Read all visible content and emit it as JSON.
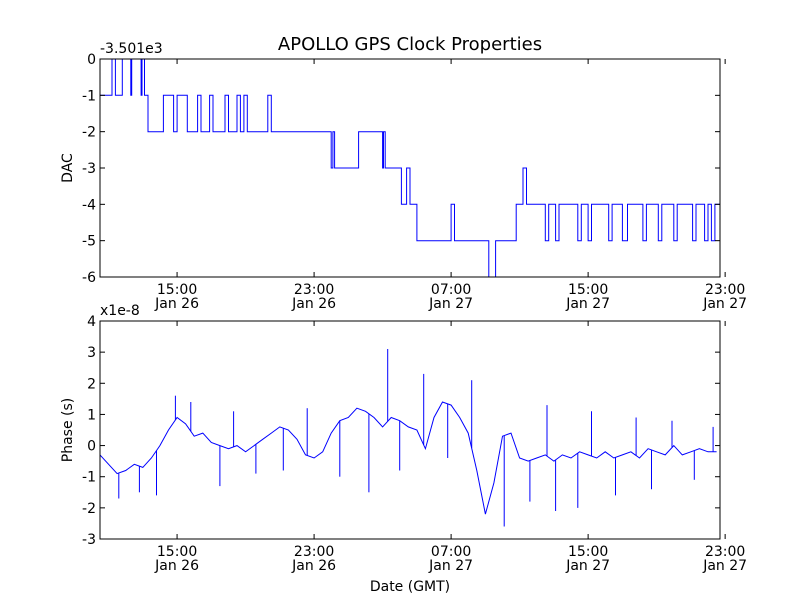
{
  "chart_data": {
    "title": "APOLLO GPS Clock Properties",
    "xlabel": "Date (GMT)",
    "x_ticks": [
      {
        "time": "15:00",
        "date": "Jan 26"
      },
      {
        "time": "23:00",
        "date": "Jan 26"
      },
      {
        "time": "07:00",
        "date": "Jan 27"
      },
      {
        "time": "15:00",
        "date": "Jan 27"
      },
      {
        "time": "23:00",
        "date": "Jan 27"
      }
    ],
    "x_tick_hours": [
      15,
      23,
      31,
      39,
      47
    ],
    "x_range_hours": [
      10.5,
      46.7
    ],
    "panels": [
      {
        "type": "line",
        "ylabel": "DAC",
        "offset_label": "-3.501e3",
        "ylim": [
          -6,
          0
        ],
        "y_ticks": [
          "0",
          "-1",
          "-2",
          "-3",
          "-4",
          "-5",
          "-6"
        ],
        "series": [
          {
            "name": "DAC",
            "color": "#0000ff",
            "x": [
              10.5,
              11.2,
              11.2,
              11.4,
              11.4,
              11.8,
              11.8,
              12.3,
              12.3,
              12.35,
              12.35,
              12.9,
              12.9,
              12.95,
              12.95,
              13.1,
              13.1,
              13.3,
              13.3,
              14.2,
              14.2,
              14.8,
              14.8,
              15.0,
              15.0,
              15.6,
              15.6,
              16.2,
              16.2,
              16.4,
              16.4,
              16.9,
              16.9,
              17.1,
              17.1,
              17.8,
              17.8,
              18.0,
              18.0,
              18.5,
              18.5,
              18.7,
              18.7,
              18.9,
              18.9,
              19.1,
              19.1,
              20.3,
              20.3,
              20.5,
              20.5,
              24.0,
              24.0,
              24.1,
              24.1,
              24.2,
              24.2,
              25.6,
              25.6,
              27.0,
              27.0,
              27.05,
              27.05,
              27.15,
              27.15,
              28.1,
              28.1,
              28.4,
              28.4,
              28.6,
              28.6,
              29.0,
              29.0,
              31.0,
              31.0,
              31.2,
              31.2,
              33.2,
              33.2,
              33.6,
              33.6,
              34.8,
              34.8,
              35.2,
              35.2,
              35.4,
              35.4,
              36.5,
              36.5,
              36.7,
              36.7,
              37.1,
              37.1,
              37.3,
              37.3,
              38.4,
              38.4,
              38.6,
              38.6,
              39.0,
              39.0,
              39.2,
              39.2,
              40.2,
              40.2,
              40.4,
              40.4,
              41.0,
              41.0,
              41.3,
              41.3,
              42.2,
              42.2,
              42.4,
              42.4,
              43.1,
              43.1,
              43.3,
              43.3,
              44.0,
              44.0,
              44.2,
              44.2,
              45.1,
              45.1,
              45.3,
              45.3,
              45.8,
              45.8,
              46.0,
              46.0,
              46.2,
              46.2,
              46.4,
              46.4,
              46.7
            ],
            "y": [
              -1,
              -1,
              0,
              0,
              -1,
              -1,
              0,
              0,
              -1,
              -1,
              0,
              0,
              -1,
              -1,
              0,
              0,
              -1,
              -1,
              -2,
              -2,
              -1,
              -1,
              -2,
              -2,
              -1,
              -1,
              -2,
              -2,
              -1,
              -1,
              -2,
              -2,
              -1,
              -1,
              -2,
              -2,
              -1,
              -1,
              -2,
              -2,
              -1,
              -1,
              -2,
              -2,
              -1,
              -1,
              -2,
              -2,
              -1,
              -1,
              -2,
              -2,
              -3,
              -3,
              -2,
              -2,
              -3,
              -3,
              -2,
              -2,
              -3,
              -3,
              -2,
              -2,
              -3,
              -3,
              -4,
              -4,
              -3,
              -3,
              -4,
              -4,
              -5,
              -5,
              -4,
              -4,
              -5,
              -5,
              -6,
              -6,
              -5,
              -5,
              -4,
              -4,
              -3,
              -3,
              -4,
              -4,
              -5,
              -5,
              -4,
              -4,
              -5,
              -5,
              -4,
              -4,
              -5,
              -5,
              -4,
              -4,
              -5,
              -5,
              -4,
              -4,
              -5,
              -5,
              -4,
              -4,
              -5,
              -5,
              -4,
              -4,
              -5,
              -5,
              -4,
              -4,
              -5,
              -5,
              -4,
              -4,
              -5,
              -5,
              -4,
              -4,
              -5,
              -5,
              -4,
              -4,
              -5,
              -5,
              -4,
              -4,
              -5,
              -5,
              -4,
              -4
            ]
          }
        ]
      },
      {
        "type": "line",
        "ylabel": "Phase (s)",
        "offset_label": "x1e-8",
        "ylim": [
          -3,
          4
        ],
        "y_ticks": [
          "4",
          "3",
          "2",
          "1",
          "0",
          "-1",
          "-2",
          "-3"
        ],
        "series": [
          {
            "name": "Phase",
            "color": "#0000ff",
            "x": [
              10.5,
              11.0,
              11.5,
              12.0,
              12.5,
              13.0,
              13.5,
              14.0,
              14.5,
              15.0,
              15.5,
              16.0,
              16.5,
              17.0,
              17.5,
              18.0,
              18.5,
              19.0,
              19.5,
              20.0,
              20.5,
              21.0,
              21.5,
              22.0,
              22.5,
              23.0,
              23.5,
              24.0,
              24.5,
              25.0,
              25.5,
              26.0,
              26.5,
              27.0,
              27.5,
              28.0,
              28.5,
              29.0,
              29.5,
              30.0,
              30.5,
              31.0,
              31.5,
              32.0,
              32.5,
              33.0,
              33.5,
              34.0,
              34.5,
              35.0,
              35.5,
              36.0,
              36.5,
              37.0,
              37.5,
              38.0,
              38.5,
              39.0,
              39.5,
              40.0,
              40.5,
              41.0,
              41.5,
              42.0,
              42.5,
              43.0,
              43.5,
              44.0,
              44.5,
              45.0,
              45.5,
              46.0,
              46.5
            ],
            "y": [
              -0.3,
              -0.6,
              -0.9,
              -0.8,
              -0.6,
              -0.7,
              -0.4,
              0.0,
              0.5,
              0.9,
              0.7,
              0.3,
              0.4,
              0.1,
              0.0,
              -0.1,
              0.0,
              -0.2,
              0.0,
              0.2,
              0.4,
              0.6,
              0.5,
              0.2,
              -0.3,
              -0.4,
              -0.2,
              0.4,
              0.8,
              0.9,
              1.2,
              1.1,
              0.9,
              0.6,
              0.9,
              0.8,
              0.6,
              0.5,
              -0.1,
              0.9,
              1.4,
              1.3,
              0.9,
              0.4,
              -0.8,
              -2.2,
              -1.2,
              0.3,
              0.4,
              -0.4,
              -0.5,
              -0.4,
              -0.3,
              -0.5,
              -0.3,
              -0.4,
              -0.2,
              -0.3,
              -0.4,
              -0.2,
              -0.4,
              -0.3,
              -0.2,
              -0.4,
              -0.1,
              -0.2,
              -0.3,
              0.0,
              -0.3,
              -0.2,
              -0.1,
              -0.2,
              -0.2
            ],
            "spikes": [
              {
                "x": 11.6,
                "y": -1.7
              },
              {
                "x": 12.8,
                "y": -1.5
              },
              {
                "x": 13.8,
                "y": -1.6
              },
              {
                "x": 14.9,
                "y": 1.6
              },
              {
                "x": 15.8,
                "y": 1.4
              },
              {
                "x": 17.5,
                "y": -1.3
              },
              {
                "x": 18.3,
                "y": 1.1
              },
              {
                "x": 19.6,
                "y": -0.9
              },
              {
                "x": 21.2,
                "y": -0.8
              },
              {
                "x": 22.6,
                "y": 1.2
              },
              {
                "x": 24.5,
                "y": -1.0
              },
              {
                "x": 26.2,
                "y": -1.5
              },
              {
                "x": 27.3,
                "y": 3.1
              },
              {
                "x": 28.0,
                "y": -0.8
              },
              {
                "x": 29.4,
                "y": 2.3
              },
              {
                "x": 30.8,
                "y": -0.4
              },
              {
                "x": 32.2,
                "y": 2.1
              },
              {
                "x": 34.1,
                "y": -2.6
              },
              {
                "x": 35.6,
                "y": -1.8
              },
              {
                "x": 36.6,
                "y": 1.3
              },
              {
                "x": 37.1,
                "y": -2.1
              },
              {
                "x": 38.4,
                "y": -2.0
              },
              {
                "x": 39.2,
                "y": 1.1
              },
              {
                "x": 40.6,
                "y": -1.6
              },
              {
                "x": 41.8,
                "y": 0.9
              },
              {
                "x": 42.7,
                "y": -1.4
              },
              {
                "x": 43.9,
                "y": 0.8
              },
              {
                "x": 45.2,
                "y": -1.1
              },
              {
                "x": 46.3,
                "y": 0.6
              }
            ]
          }
        ]
      }
    ]
  }
}
